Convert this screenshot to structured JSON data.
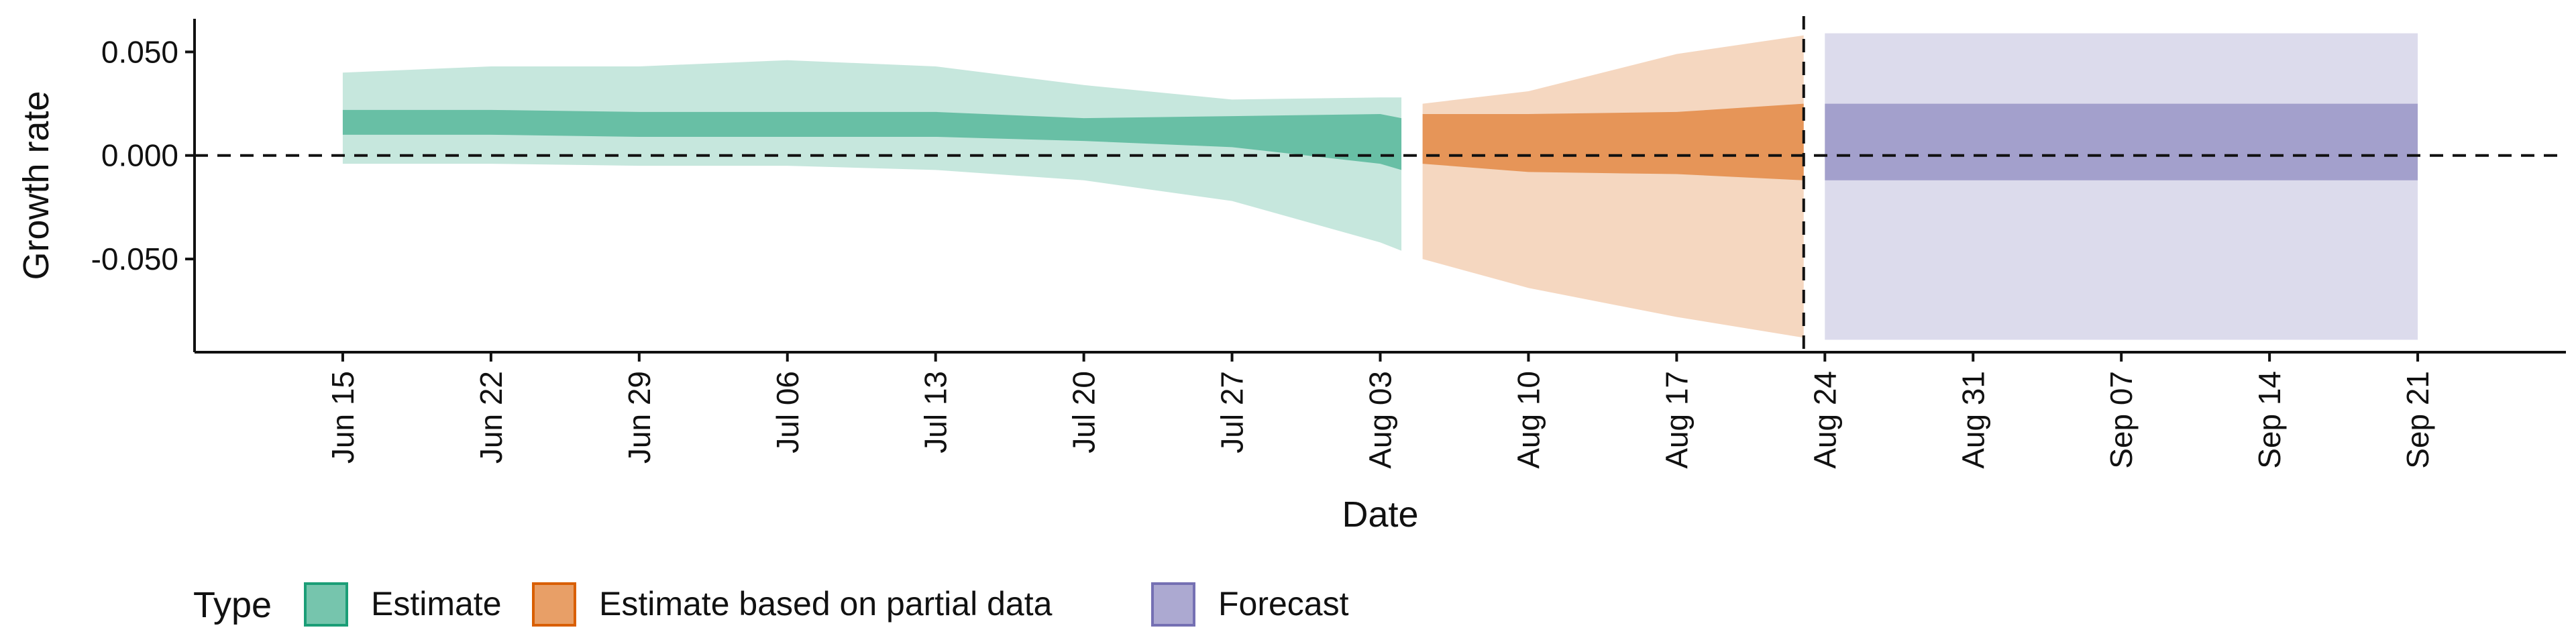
{
  "chart_data": {
    "type": "area",
    "xlabel": "Date",
    "ylabel": "Growth rate",
    "ylim": [
      -0.095,
      0.066
    ],
    "xlim": [
      "2021-06-08",
      "2021-09-28"
    ],
    "y_ticks": [
      -0.05,
      0.0,
      0.05
    ],
    "y_tick_labels": [
      "-0.050",
      "0.000",
      "0.050"
    ],
    "x_ticks": [
      "2021-06-15",
      "2021-06-22",
      "2021-06-29",
      "2021-07-06",
      "2021-07-13",
      "2021-07-20",
      "2021-07-27",
      "2021-08-03",
      "2021-08-10",
      "2021-08-17",
      "2021-08-24",
      "2021-08-31",
      "2021-09-07",
      "2021-09-14",
      "2021-09-21"
    ],
    "x_tick_labels": [
      "Jun 15",
      "Jun 22",
      "Jun 29",
      "Jul 06",
      "Jul 13",
      "Jul 20",
      "Jul 27",
      "Aug 03",
      "Aug 10",
      "Aug 17",
      "Aug 24",
      "Aug 31",
      "Sep 07",
      "Sep 14",
      "Sep 21"
    ],
    "reference_lines": {
      "horizontal_y": 0.0,
      "vertical_date": "2021-08-23"
    },
    "grid": false,
    "legend": {
      "title": "Type",
      "position": "bottom-left",
      "entries": [
        {
          "label": "Estimate",
          "color": "#1b9e77"
        },
        {
          "label": "Estimate based on partial data",
          "color": "#d95f02"
        },
        {
          "label": "Forecast",
          "color": "#7570b3"
        }
      ]
    },
    "series": [
      {
        "name": "Estimate",
        "color": "#1b9e77",
        "points": [
          {
            "x": "2021-06-15",
            "lo90": -0.004,
            "lo50": 0.01,
            "hi50": 0.022,
            "hi90": 0.04
          },
          {
            "x": "2021-06-22",
            "lo90": -0.004,
            "lo50": 0.01,
            "hi50": 0.022,
            "hi90": 0.043
          },
          {
            "x": "2021-06-29",
            "lo90": -0.005,
            "lo50": 0.009,
            "hi50": 0.021,
            "hi90": 0.043
          },
          {
            "x": "2021-07-06",
            "lo90": -0.005,
            "lo50": 0.009,
            "hi50": 0.021,
            "hi90": 0.046
          },
          {
            "x": "2021-07-13",
            "lo90": -0.007,
            "lo50": 0.009,
            "hi50": 0.021,
            "hi90": 0.043
          },
          {
            "x": "2021-07-20",
            "lo90": -0.012,
            "lo50": 0.007,
            "hi50": 0.018,
            "hi90": 0.034
          },
          {
            "x": "2021-07-27",
            "lo90": -0.022,
            "lo50": 0.004,
            "hi50": 0.019,
            "hi90": 0.027
          },
          {
            "x": "2021-08-03",
            "lo90": -0.042,
            "lo50": -0.004,
            "hi50": 0.02,
            "hi90": 0.028
          },
          {
            "x": "2021-08-04",
            "lo90": -0.046,
            "lo50": -0.007,
            "hi50": 0.018,
            "hi90": 0.028
          }
        ]
      },
      {
        "name": "Estimate based on partial data",
        "color": "#d95f02",
        "points": [
          {
            "x": "2021-08-05",
            "lo90": -0.05,
            "lo50": -0.004,
            "hi50": 0.02,
            "hi90": 0.025
          },
          {
            "x": "2021-08-10",
            "lo90": -0.064,
            "lo50": -0.008,
            "hi50": 0.02,
            "hi90": 0.031
          },
          {
            "x": "2021-08-17",
            "lo90": -0.078,
            "lo50": -0.009,
            "hi50": 0.021,
            "hi90": 0.049
          },
          {
            "x": "2021-08-23",
            "lo90": -0.088,
            "lo50": -0.012,
            "hi50": 0.025,
            "hi90": 0.058
          }
        ]
      },
      {
        "name": "Forecast",
        "color": "#7570b3",
        "points": [
          {
            "x": "2021-08-24",
            "lo90": -0.089,
            "lo50": -0.012,
            "hi50": 0.025,
            "hi90": 0.059
          },
          {
            "x": "2021-09-21",
            "lo90": -0.089,
            "lo50": -0.012,
            "hi50": 0.025,
            "hi90": 0.059
          }
        ]
      }
    ]
  }
}
